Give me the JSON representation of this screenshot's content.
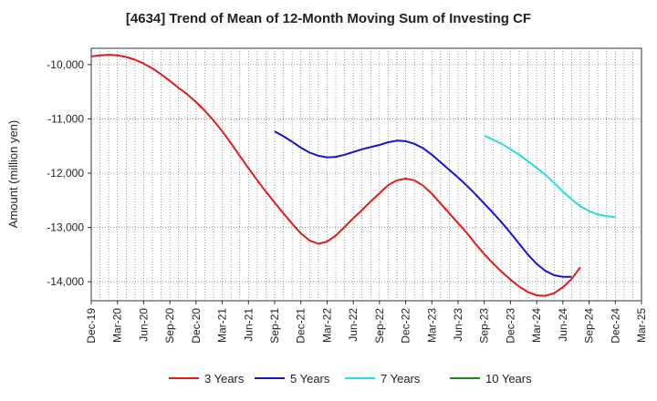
{
  "chart_data": {
    "type": "line",
    "title": "[4634]  Trend of Mean of 12-Month Moving Sum of Investing CF",
    "xlabel": "",
    "ylabel": "Amount (million yen)",
    "ylim": [
      -14350,
      -9700
    ],
    "yticks": [
      -10000,
      -11000,
      -12000,
      -13000,
      -14000
    ],
    "ytick_labels": [
      "-10,000",
      "-11,000",
      "-12,000",
      "-13,000",
      "-14,000"
    ],
    "x_start": "Dec-19",
    "x_months": 63,
    "xtick_labels": [
      "Dec-19",
      "Mar-20",
      "Jun-20",
      "Sep-20",
      "Dec-20",
      "Mar-21",
      "Jun-21",
      "Sep-21",
      "Dec-21",
      "Mar-22",
      "Jun-22",
      "Sep-22",
      "Dec-22",
      "Mar-23",
      "Jun-23",
      "Sep-23",
      "Dec-23",
      "Mar-24",
      "Jun-24",
      "Sep-24",
      "Dec-24",
      "Mar-25"
    ],
    "grid": true,
    "legend_position": "bottom",
    "series": [
      {
        "name": "3 Years",
        "color": "#e31a1c",
        "start_index": 0,
        "values": [
          -9850,
          -9830,
          -9820,
          -9830,
          -9860,
          -9910,
          -9980,
          -10070,
          -10180,
          -10300,
          -10430,
          -10550,
          -10690,
          -10850,
          -11030,
          -11230,
          -11450,
          -11680,
          -11910,
          -12130,
          -12340,
          -12540,
          -12740,
          -12930,
          -13110,
          -13240,
          -13300,
          -13260,
          -13150,
          -12990,
          -12830,
          -12680,
          -12520,
          -12370,
          -12220,
          -12130,
          -12100,
          -12130,
          -12230,
          -12380,
          -12560,
          -12740,
          -12920,
          -13100,
          -13300,
          -13490,
          -13660,
          -13820,
          -13960,
          -14090,
          -14190,
          -14250,
          -14260,
          -14210,
          -14100,
          -13950,
          -13730
        ]
      },
      {
        "name": "5 Years",
        "color": "#1515d1",
        "start_index": 21,
        "values": [
          -11230,
          -11320,
          -11420,
          -11530,
          -11620,
          -11680,
          -11710,
          -11700,
          -11660,
          -11610,
          -11560,
          -11520,
          -11480,
          -11430,
          -11400,
          -11410,
          -11460,
          -11540,
          -11660,
          -11800,
          -11940,
          -12080,
          -12230,
          -12390,
          -12560,
          -12730,
          -12910,
          -13100,
          -13300,
          -13500,
          -13670,
          -13800,
          -13880,
          -13910,
          -13910
        ]
      },
      {
        "name": "7 Years",
        "color": "#22dde6",
        "start_index": 45,
        "values": [
          -11310,
          -11380,
          -11460,
          -11560,
          -11660,
          -11780,
          -11900,
          -12030,
          -12180,
          -12340,
          -12480,
          -12610,
          -12700,
          -12760,
          -12790,
          -12810
        ]
      },
      {
        "name": "10 Years",
        "color": "#1a8a1a",
        "start_index": 0,
        "values": []
      }
    ]
  }
}
